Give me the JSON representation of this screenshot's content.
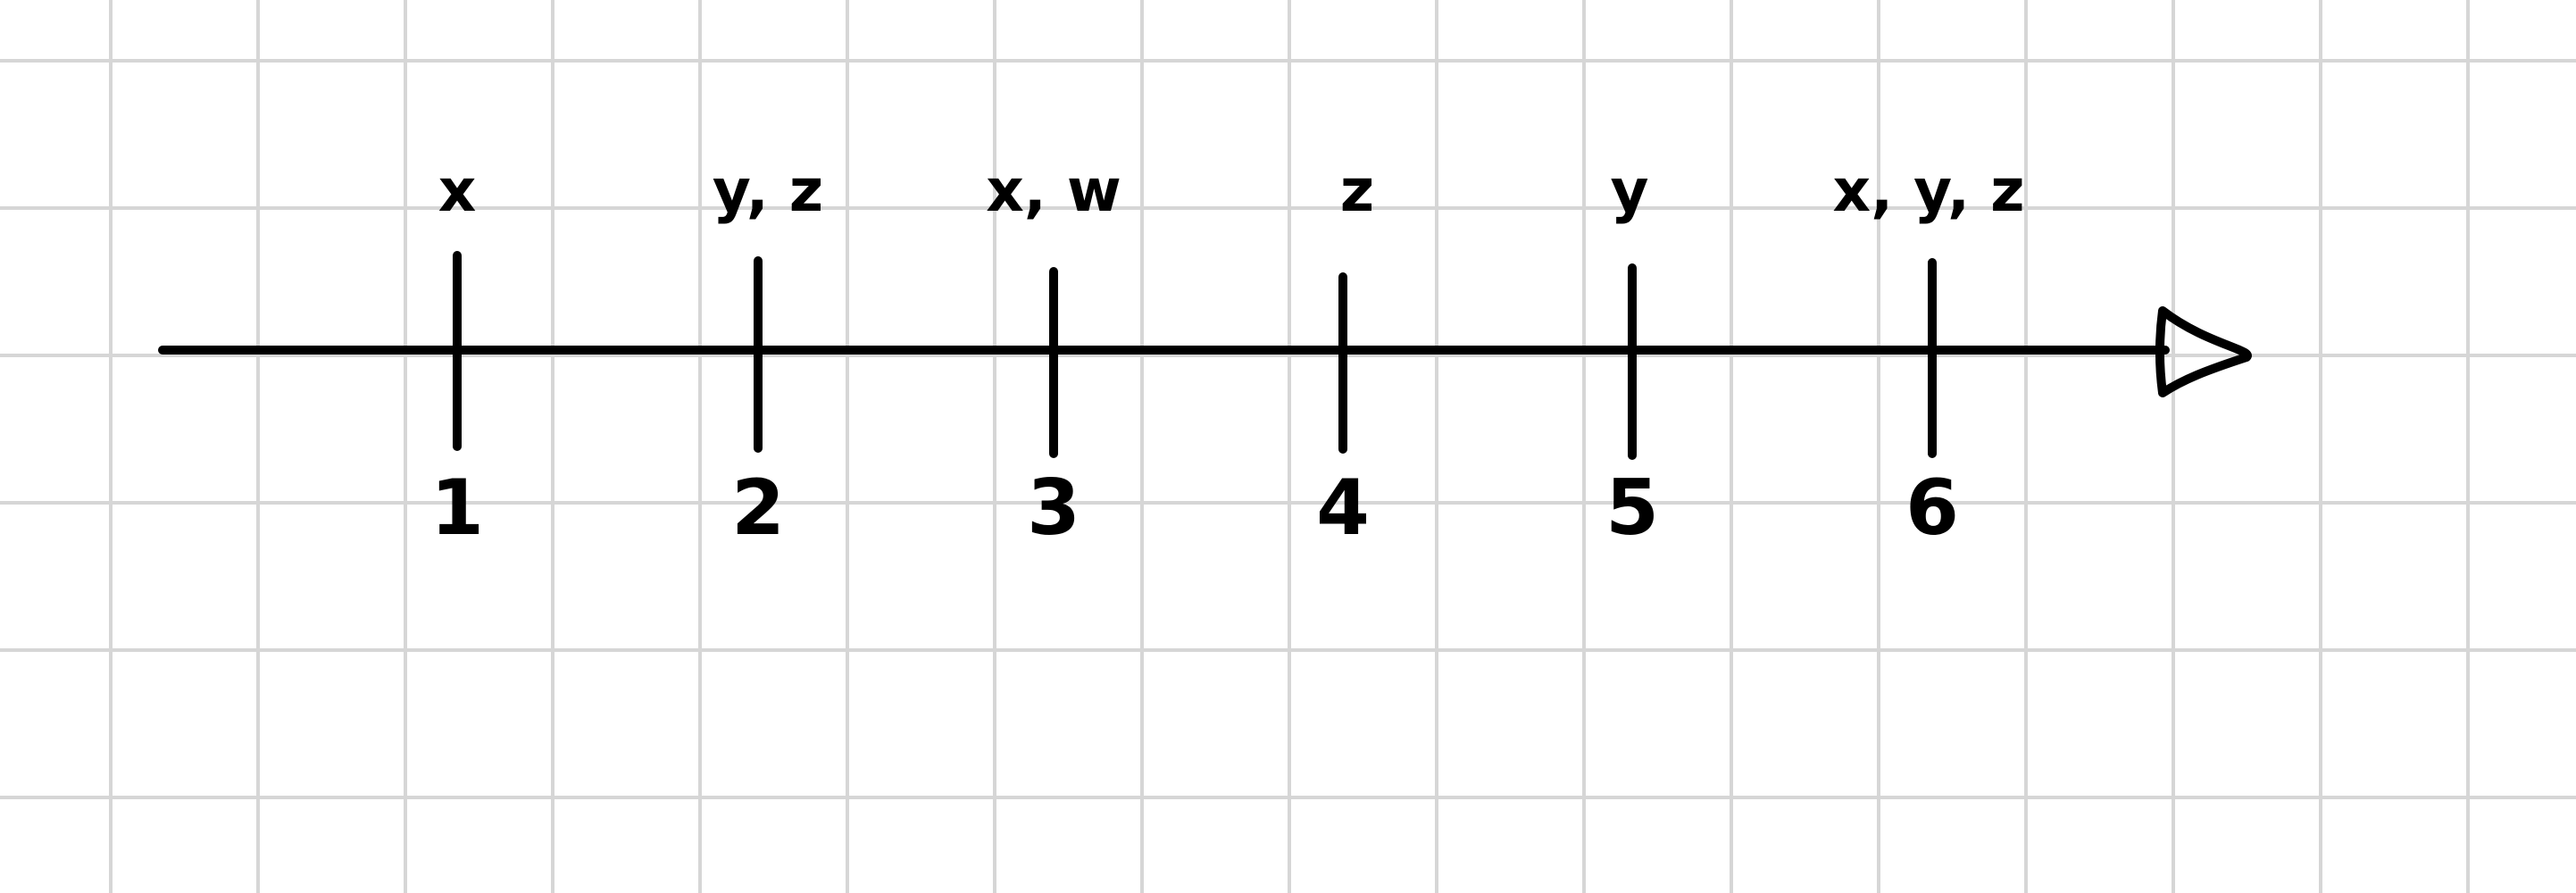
{
  "colors": {
    "ink": "#000000",
    "grid": "#d6d6d6",
    "paper": "#ffffff"
  },
  "diagram": {
    "kind": "number-line-timeline",
    "arrow": "right",
    "ticks": [
      {
        "number": "1",
        "label": "x"
      },
      {
        "number": "2",
        "label": "y, z"
      },
      {
        "number": "3",
        "label": "x, w"
      },
      {
        "number": "4",
        "label": "z"
      },
      {
        "number": "5",
        "label": "y"
      },
      {
        "number": "6",
        "label": "x, y, z"
      }
    ]
  }
}
